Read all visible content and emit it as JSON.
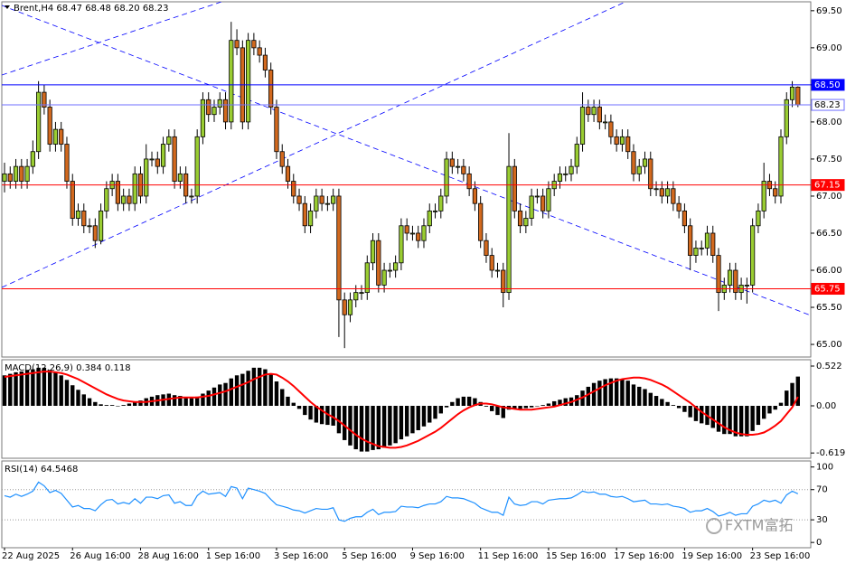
{
  "header": "Brent,H4 68.47 68.48 68.20 68.23",
  "watermark": "FXTM富拓",
  "chart_data": [
    {
      "type": "candlestick",
      "categories": [
        "22 Aug 2025",
        null,
        null,
        null,
        null,
        null,
        null,
        null,
        null,
        null,
        null,
        null,
        "26 Aug 16:00",
        null,
        null,
        null,
        null,
        null,
        null,
        null,
        null,
        null,
        null,
        null,
        "28 Aug 16:00",
        null,
        null,
        null,
        null,
        null,
        null,
        null,
        null,
        null,
        null,
        null,
        "1 Sep 16:00",
        null,
        null,
        null,
        null,
        null,
        null,
        null,
        null,
        null,
        null,
        null,
        "3 Sep 16:00",
        null,
        null,
        null,
        null,
        null,
        null,
        null,
        null,
        null,
        null,
        null,
        "5 Sep 16:00",
        null,
        null,
        null,
        null,
        null,
        null,
        null,
        null,
        null,
        null,
        null,
        "9 Sep 16:00",
        null,
        null,
        null,
        null,
        null,
        null,
        null,
        null,
        null,
        null,
        null,
        "11 Sep 16:00",
        null,
        null,
        null,
        null,
        null,
        null,
        null,
        null,
        null,
        null,
        null,
        "15 Sep 16:00",
        null,
        null,
        null,
        null,
        null,
        null,
        null,
        null,
        null,
        null,
        null,
        "17 Sep 16:00",
        null,
        null,
        null,
        null,
        null,
        null,
        null,
        null,
        null,
        null,
        null,
        "19 Sep 16:00",
        null,
        null,
        null,
        null,
        null,
        null,
        null,
        null,
        null,
        null,
        null,
        "23 Sep 16:00",
        null,
        null,
        null,
        null,
        null,
        null,
        null,
        null
      ],
      "open": [
        67.2,
        67.3,
        67.2,
        67.4,
        67.2,
        67.4,
        67.6,
        68.4,
        68.2,
        67.7,
        67.9,
        67.7,
        67.2,
        66.7,
        66.8,
        66.6,
        66.6,
        66.4,
        66.8,
        67.1,
        67.2,
        66.9,
        67.0,
        66.9,
        67.3,
        67.0,
        67.5,
        67.5,
        67.4,
        67.7,
        67.8,
        67.2,
        67.3,
        67.0,
        67.0,
        67.8,
        68.3,
        68.1,
        68.2,
        68.3,
        68.0,
        69.1,
        69.0,
        68.0,
        69.1,
        69.0,
        68.9,
        68.7,
        68.2,
        67.6,
        67.4,
        67.2,
        67.0,
        66.9,
        66.6,
        66.8,
        67.0,
        66.9,
        66.9,
        67.0,
        65.6,
        65.4,
        65.6,
        65.7,
        65.7,
        66.1,
        66.4,
        65.8,
        66.0,
        66.0,
        66.1,
        66.6,
        66.5,
        66.5,
        66.4,
        66.6,
        66.8,
        66.8,
        67.0,
        67.5,
        67.4,
        67.4,
        67.3,
        67.1,
        66.9,
        66.4,
        66.2,
        66.0,
        66.0,
        65.7,
        67.4,
        66.8,
        66.6,
        66.7,
        67.0,
        67.0,
        66.8,
        67.1,
        67.2,
        67.3,
        67.3,
        67.4,
        67.7,
        68.2,
        68.1,
        68.2,
        68.0,
        68.0,
        67.8,
        67.7,
        67.8,
        67.6,
        67.3,
        67.4,
        67.5,
        67.1,
        67.1,
        67.0,
        67.1,
        66.9,
        66.8,
        66.6,
        66.2,
        66.3,
        66.3,
        66.5,
        66.2,
        65.7,
        65.8,
        66.0,
        65.7,
        65.8,
        65.8,
        66.6,
        66.8,
        67.2,
        67.1,
        67.0,
        67.8,
        68.3,
        68.47
      ],
      "high": [
        67.45,
        67.4,
        67.5,
        67.5,
        67.5,
        67.75,
        68.55,
        68.5,
        68.3,
        68.0,
        68.0,
        67.8,
        67.3,
        66.9,
        66.9,
        66.7,
        66.7,
        66.9,
        67.2,
        67.3,
        67.3,
        67.1,
        67.1,
        67.4,
        67.4,
        67.7,
        67.6,
        67.6,
        67.8,
        67.9,
        67.9,
        67.4,
        67.4,
        67.1,
        67.9,
        68.4,
        68.4,
        68.3,
        68.4,
        68.4,
        69.35,
        69.25,
        69.1,
        69.2,
        69.2,
        69.1,
        69.0,
        68.8,
        68.3,
        67.7,
        67.5,
        67.3,
        67.1,
        67.0,
        66.9,
        67.1,
        67.1,
        67.0,
        67.1,
        67.1,
        65.7,
        65.7,
        65.8,
        65.8,
        66.2,
        66.5,
        66.5,
        66.1,
        66.1,
        66.2,
        66.7,
        66.7,
        66.6,
        66.6,
        66.7,
        66.9,
        66.9,
        67.1,
        67.6,
        67.6,
        67.5,
        67.5,
        67.4,
        67.2,
        67.0,
        66.5,
        66.3,
        66.1,
        66.1,
        67.85,
        67.5,
        66.9,
        66.8,
        67.1,
        67.1,
        67.1,
        67.2,
        67.3,
        67.4,
        67.4,
        67.5,
        67.8,
        68.4,
        68.3,
        68.3,
        68.3,
        68.1,
        68.1,
        67.9,
        67.9,
        67.9,
        67.7,
        67.5,
        67.6,
        67.6,
        67.2,
        67.2,
        67.2,
        67.2,
        67.0,
        66.9,
        66.7,
        66.4,
        66.4,
        66.6,
        66.6,
        66.3,
        65.9,
        66.1,
        66.1,
        65.9,
        65.9,
        66.7,
        66.9,
        67.45,
        67.3,
        67.2,
        67.9,
        68.4,
        68.55,
        68.48
      ],
      "low": [
        67.05,
        67.1,
        67.1,
        67.1,
        67.1,
        67.3,
        67.5,
        68.1,
        67.6,
        67.6,
        67.6,
        67.1,
        66.6,
        66.6,
        66.5,
        66.5,
        66.3,
        66.35,
        66.7,
        67.0,
        66.8,
        66.8,
        66.8,
        66.8,
        66.9,
        66.9,
        67.4,
        67.3,
        67.3,
        67.6,
        67.1,
        67.1,
        66.9,
        66.9,
        66.9,
        67.7,
        68.0,
        68.0,
        68.1,
        67.9,
        67.9,
        68.9,
        67.9,
        67.9,
        68.9,
        68.8,
        68.6,
        68.1,
        67.5,
        67.3,
        67.1,
        66.9,
        66.8,
        66.5,
        66.5,
        66.7,
        66.8,
        66.8,
        66.8,
        65.1,
        64.95,
        65.3,
        65.5,
        65.6,
        65.6,
        66.0,
        65.7,
        65.7,
        65.9,
        65.9,
        66.0,
        66.4,
        66.4,
        66.3,
        66.3,
        66.5,
        66.7,
        66.7,
        66.9,
        67.3,
        67.3,
        67.2,
        67.0,
        66.8,
        66.3,
        66.1,
        65.9,
        65.9,
        65.5,
        65.6,
        66.7,
        66.5,
        66.5,
        66.6,
        66.9,
        66.7,
        66.7,
        67.0,
        67.1,
        67.2,
        67.2,
        67.3,
        67.6,
        68.0,
        68.0,
        67.9,
        67.9,
        67.7,
        67.6,
        67.6,
        67.5,
        67.2,
        67.2,
        67.3,
        67.0,
        67.0,
        66.9,
        66.9,
        66.8,
        66.7,
        66.5,
        66.0,
        66.1,
        66.2,
        66.2,
        66.1,
        65.45,
        65.6,
        65.7,
        65.6,
        65.6,
        65.55,
        65.7,
        66.5,
        66.7,
        67.0,
        66.9,
        66.9,
        67.7,
        68.2,
        68.2
      ],
      "close": [
        67.3,
        67.2,
        67.4,
        67.2,
        67.4,
        67.6,
        68.4,
        68.2,
        67.7,
        67.9,
        67.7,
        67.2,
        66.7,
        66.8,
        66.6,
        66.6,
        66.4,
        66.8,
        67.1,
        67.2,
        66.9,
        67.0,
        66.9,
        67.3,
        67.0,
        67.5,
        67.5,
        67.4,
        67.7,
        67.8,
        67.2,
        67.3,
        67.0,
        67.0,
        67.8,
        68.3,
        68.1,
        68.2,
        68.3,
        68.0,
        69.1,
        69.0,
        68.0,
        69.1,
        69.0,
        68.9,
        68.7,
        68.2,
        67.6,
        67.4,
        67.2,
        67.0,
        66.9,
        66.6,
        66.8,
        67.0,
        66.9,
        66.9,
        67.0,
        65.6,
        65.4,
        65.6,
        65.7,
        65.7,
        66.1,
        66.4,
        65.8,
        66.0,
        66.0,
        66.1,
        66.6,
        66.5,
        66.5,
        66.4,
        66.6,
        66.8,
        66.8,
        67.0,
        67.5,
        67.4,
        67.4,
        67.3,
        67.1,
        66.9,
        66.4,
        66.2,
        66.0,
        66.0,
        65.7,
        67.4,
        66.8,
        66.6,
        66.7,
        67.0,
        67.0,
        66.8,
        67.1,
        67.2,
        67.3,
        67.3,
        67.4,
        67.7,
        68.2,
        68.1,
        68.2,
        68.0,
        68.0,
        67.8,
        67.7,
        67.8,
        67.6,
        67.3,
        67.4,
        67.5,
        67.1,
        67.1,
        67.0,
        67.1,
        66.9,
        66.8,
        66.6,
        66.2,
        66.3,
        66.3,
        66.5,
        66.2,
        65.7,
        65.8,
        66.0,
        65.7,
        65.8,
        65.8,
        66.6,
        66.8,
        67.2,
        67.1,
        67.0,
        67.8,
        68.3,
        68.47,
        68.23
      ],
      "up_color": "#9acd32",
      "down_color": "#d2691e",
      "ylim": [
        64.83,
        69.62
      ],
      "yticks": [
        {
          "value": 69.5,
          "label": "69.50"
        },
        {
          "value": 69,
          "label": "69.00"
        },
        {
          "value": 68.5,
          "label": "68.50"
        },
        {
          "value": 68,
          "label": "68.00"
        },
        {
          "value": 67.5,
          "label": "67.50"
        },
        {
          "value": 67,
          "label": "67.00"
        },
        {
          "value": 66.5,
          "label": "66.50"
        },
        {
          "value": 66,
          "label": "66.00"
        },
        {
          "value": 65.5,
          "label": "65.50"
        },
        {
          "value": 65,
          "label": "65.00"
        }
      ],
      "levels": [
        {
          "value": 68.5,
          "label": "68.50",
          "color": "#0000ff",
          "box": "#0000ff",
          "text_color": "#ffffff"
        },
        {
          "value": 68.23,
          "label": "68.23",
          "color": "#6f6fff",
          "box": "#ffffff",
          "text_color": "#000000"
        },
        {
          "value": 67.15,
          "label": "67.15",
          "color": "#ff0000",
          "box": "#ff0000",
          "text_color": "#ffffff"
        },
        {
          "value": 65.75,
          "label": "65.75",
          "color": "#ff0000",
          "box": "#ff0000",
          "text_color": "#ffffff"
        }
      ]
    },
    {
      "type": "macd",
      "title": "MACD(12,26,9) 0.384 0.118",
      "ylim": [
        -0.688,
        0.605
      ],
      "yticks": [
        0.522,
        {
          "value": 0,
          "label": "0.00"
        },
        -0.619
      ],
      "series": [
        {
          "type": "bar",
          "color": "#000000",
          "values": [
            0.4,
            0.42,
            0.44,
            0.45,
            0.47,
            0.48,
            0.5,
            0.5,
            0.47,
            0.44,
            0.4,
            0.34,
            0.27,
            0.21,
            0.15,
            0.1,
            0.05,
            0.02,
            0.01,
            0.01,
            0.0,
            0.01,
            0.03,
            0.05,
            0.07,
            0.1,
            0.12,
            0.14,
            0.15,
            0.16,
            0.14,
            0.13,
            0.11,
            0.1,
            0.12,
            0.16,
            0.2,
            0.24,
            0.28,
            0.3,
            0.36,
            0.4,
            0.42,
            0.46,
            0.5,
            0.5,
            0.48,
            0.42,
            0.32,
            0.22,
            0.12,
            0.04,
            -0.04,
            -0.12,
            -0.18,
            -0.22,
            -0.24,
            -0.25,
            -0.26,
            -0.36,
            -0.45,
            -0.52,
            -0.57,
            -0.6,
            -0.6,
            -0.58,
            -0.57,
            -0.55,
            -0.52,
            -0.49,
            -0.44,
            -0.4,
            -0.36,
            -0.32,
            -0.27,
            -0.22,
            -0.17,
            -0.1,
            -0.02,
            0.05,
            0.1,
            0.12,
            0.12,
            0.1,
            0.05,
            -0.01,
            -0.07,
            -0.12,
            -0.16,
            -0.05,
            -0.04,
            -0.04,
            -0.03,
            -0.02,
            0.0,
            0.01,
            0.03,
            0.06,
            0.08,
            0.1,
            0.11,
            0.14,
            0.2,
            0.25,
            0.3,
            0.33,
            0.35,
            0.36,
            0.36,
            0.35,
            0.33,
            0.28,
            0.25,
            0.22,
            0.17,
            0.13,
            0.09,
            0.05,
            0.01,
            -0.03,
            -0.08,
            -0.15,
            -0.2,
            -0.23,
            -0.25,
            -0.29,
            -0.34,
            -0.37,
            -0.37,
            -0.4,
            -0.4,
            -0.4,
            -0.33,
            -0.25,
            -0.17,
            -0.1,
            -0.05,
            0.04,
            0.2,
            0.3,
            0.384
          ]
        },
        {
          "type": "line",
          "color": "#ff0000",
          "values": [
            0.38,
            0.39,
            0.4,
            0.41,
            0.42,
            0.43,
            0.44,
            0.45,
            0.45,
            0.44,
            0.43,
            0.41,
            0.38,
            0.35,
            0.31,
            0.27,
            0.23,
            0.19,
            0.15,
            0.12,
            0.09,
            0.07,
            0.06,
            0.05,
            0.05,
            0.05,
            0.06,
            0.07,
            0.08,
            0.09,
            0.1,
            0.11,
            0.11,
            0.11,
            0.11,
            0.12,
            0.13,
            0.15,
            0.17,
            0.19,
            0.22,
            0.25,
            0.28,
            0.31,
            0.35,
            0.38,
            0.41,
            0.42,
            0.41,
            0.37,
            0.32,
            0.26,
            0.19,
            0.12,
            0.05,
            -0.01,
            -0.06,
            -0.11,
            -0.15,
            -0.2,
            -0.26,
            -0.32,
            -0.38,
            -0.43,
            -0.47,
            -0.5,
            -0.53,
            -0.54,
            -0.55,
            -0.55,
            -0.54,
            -0.52,
            -0.49,
            -0.46,
            -0.42,
            -0.38,
            -0.34,
            -0.29,
            -0.23,
            -0.17,
            -0.11,
            -0.06,
            -0.02,
            0.01,
            0.03,
            0.03,
            0.02,
            0.0,
            -0.02,
            -0.03,
            -0.04,
            -0.05,
            -0.05,
            -0.05,
            -0.04,
            -0.03,
            -0.02,
            -0.01,
            0.01,
            0.03,
            0.05,
            0.08,
            0.11,
            0.15,
            0.19,
            0.23,
            0.27,
            0.3,
            0.33,
            0.35,
            0.36,
            0.37,
            0.37,
            0.36,
            0.34,
            0.31,
            0.28,
            0.24,
            0.19,
            0.14,
            0.09,
            0.04,
            -0.02,
            -0.08,
            -0.13,
            -0.18,
            -0.23,
            -0.28,
            -0.32,
            -0.35,
            -0.37,
            -0.38,
            -0.38,
            -0.37,
            -0.35,
            -0.31,
            -0.26,
            -0.2,
            -0.11,
            -0.02,
            0.118
          ]
        }
      ]
    },
    {
      "type": "line",
      "title": "RSI(14) 64.5468",
      "color": "#1e90ff",
      "ylim": [
        -7,
        108
      ],
      "yticks": [
        100,
        70,
        30,
        0
      ],
      "levels": [
        70,
        30
      ],
      "values": [
        62,
        60,
        64,
        61,
        64,
        68,
        80,
        75,
        66,
        69,
        65,
        56,
        47,
        49,
        45,
        45,
        42,
        50,
        56,
        57,
        51,
        53,
        51,
        58,
        52,
        60,
        60,
        58,
        62,
        63,
        52,
        54,
        49,
        49,
        62,
        68,
        64,
        65,
        66,
        61,
        74,
        72,
        58,
        72,
        70,
        68,
        65,
        57,
        50,
        48,
        46,
        43,
        42,
        39,
        42,
        45,
        44,
        44,
        46,
        30,
        28,
        32,
        34,
        34,
        40,
        44,
        37,
        40,
        40,
        41,
        48,
        47,
        47,
        46,
        49,
        51,
        51,
        54,
        61,
        59,
        59,
        58,
        55,
        52,
        46,
        43,
        40,
        40,
        36,
        60,
        51,
        49,
        50,
        54,
        54,
        51,
        56,
        57,
        58,
        58,
        59,
        63,
        68,
        66,
        67,
        64,
        64,
        61,
        60,
        61,
        58,
        54,
        55,
        56,
        51,
        51,
        50,
        51,
        48,
        47,
        45,
        40,
        42,
        42,
        45,
        41,
        35,
        37,
        40,
        36,
        38,
        38,
        48,
        51,
        56,
        54,
        56,
        52,
        63,
        68,
        64.55
      ]
    }
  ]
}
